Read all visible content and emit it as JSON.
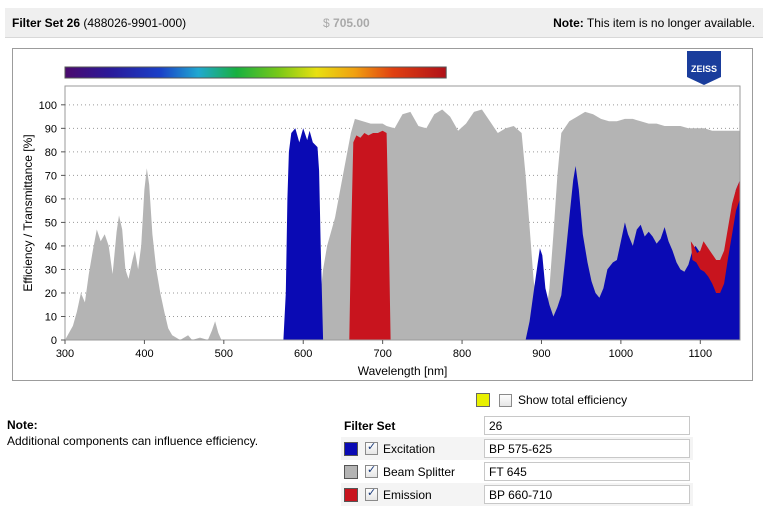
{
  "header": {
    "title": "Filter Set 26",
    "code": "(488026-9901-000)",
    "currency": "$",
    "price": "705.00",
    "note_label": "Note:",
    "note_text": "This item is no longer available."
  },
  "brand": {
    "logo_text": "ZEISS",
    "color": "#1a3d9c"
  },
  "chart_data": {
    "type": "area",
    "xlabel": "Wavelength [nm]",
    "ylabel": "Efficiency / Transmittance [%]",
    "xlim": [
      300,
      1150
    ],
    "ylim": [
      0,
      108
    ],
    "xticks": [
      300,
      400,
      500,
      600,
      700,
      800,
      900,
      1000,
      1100
    ],
    "yticks": [
      0,
      10,
      20,
      30,
      40,
      50,
      60,
      70,
      80,
      90,
      100
    ],
    "grid": "horizontal-dotted",
    "spectrum_bar": {
      "from_nm": 300,
      "to_nm": 780
    },
    "series": [
      {
        "name": "Beam Splitter",
        "color": "#b4b4b4",
        "points": [
          [
            300,
            0
          ],
          [
            305,
            3
          ],
          [
            310,
            6
          ],
          [
            315,
            12
          ],
          [
            320,
            20
          ],
          [
            325,
            16
          ],
          [
            330,
            28
          ],
          [
            335,
            38
          ],
          [
            340,
            47
          ],
          [
            345,
            42
          ],
          [
            350,
            45
          ],
          [
            355,
            40
          ],
          [
            360,
            28
          ],
          [
            365,
            46
          ],
          [
            368,
            53
          ],
          [
            372,
            47
          ],
          [
            376,
            30
          ],
          [
            380,
            26
          ],
          [
            385,
            34
          ],
          [
            388,
            38
          ],
          [
            392,
            30
          ],
          [
            396,
            40
          ],
          [
            400,
            64
          ],
          [
            403,
            73
          ],
          [
            406,
            66
          ],
          [
            410,
            45
          ],
          [
            415,
            30
          ],
          [
            420,
            20
          ],
          [
            425,
            12
          ],
          [
            430,
            5
          ],
          [
            435,
            2
          ],
          [
            440,
            1
          ],
          [
            445,
            0
          ],
          [
            455,
            2
          ],
          [
            460,
            0
          ],
          [
            470,
            1
          ],
          [
            480,
            0
          ],
          [
            485,
            4
          ],
          [
            489,
            8
          ],
          [
            493,
            3
          ],
          [
            497,
            0
          ],
          [
            520,
            0
          ],
          [
            560,
            0
          ],
          [
            600,
            0
          ],
          [
            610,
            4
          ],
          [
            620,
            14
          ],
          [
            625,
            30
          ],
          [
            630,
            40
          ],
          [
            640,
            52
          ],
          [
            650,
            70
          ],
          [
            660,
            88
          ],
          [
            665,
            94
          ],
          [
            675,
            93
          ],
          [
            685,
            92
          ],
          [
            700,
            92
          ],
          [
            705,
            91
          ],
          [
            715,
            90
          ],
          [
            725,
            96
          ],
          [
            735,
            97
          ],
          [
            745,
            91
          ],
          [
            755,
            90
          ],
          [
            765,
            96
          ],
          [
            775,
            98
          ],
          [
            785,
            95
          ],
          [
            795,
            89
          ],
          [
            805,
            92
          ],
          [
            815,
            97
          ],
          [
            825,
            98
          ],
          [
            835,
            93
          ],
          [
            845,
            88
          ],
          [
            855,
            90
          ],
          [
            865,
            91
          ],
          [
            875,
            88
          ],
          [
            880,
            70
          ],
          [
            885,
            48
          ],
          [
            890,
            26
          ],
          [
            895,
            12
          ],
          [
            900,
            5
          ],
          [
            905,
            2
          ],
          [
            910,
            0
          ],
          [
            1150,
            0
          ]
        ],
        "upper_profile": [
          [
            900,
            5
          ],
          [
            905,
            10
          ],
          [
            910,
            22
          ],
          [
            915,
            45
          ],
          [
            920,
            70
          ],
          [
            925,
            88
          ],
          [
            935,
            93
          ],
          [
            945,
            95
          ],
          [
            955,
            97
          ],
          [
            965,
            96
          ],
          [
            975,
            94
          ],
          [
            985,
            93
          ],
          [
            995,
            93
          ],
          [
            1005,
            94
          ],
          [
            1015,
            94
          ],
          [
            1025,
            93
          ],
          [
            1035,
            92
          ],
          [
            1045,
            92
          ],
          [
            1055,
            91
          ],
          [
            1065,
            91
          ],
          [
            1075,
            91
          ],
          [
            1085,
            90
          ],
          [
            1095,
            90
          ],
          [
            1105,
            90
          ],
          [
            1115,
            89
          ],
          [
            1125,
            89
          ],
          [
            1135,
            89
          ],
          [
            1145,
            89
          ],
          [
            1150,
            89
          ]
        ]
      },
      {
        "name": "Excitation",
        "color": "#0a0ab4",
        "points": [
          [
            575,
            0
          ],
          [
            578,
            20
          ],
          [
            580,
            60
          ],
          [
            582,
            80
          ],
          [
            585,
            88
          ],
          [
            590,
            90
          ],
          [
            595,
            84
          ],
          [
            600,
            90
          ],
          [
            605,
            85
          ],
          [
            608,
            89
          ],
          [
            612,
            84
          ],
          [
            618,
            82
          ],
          [
            620,
            72
          ],
          [
            622,
            40
          ],
          [
            625,
            0
          ]
        ]
      },
      {
        "name": "Emission",
        "color": "#c8141e",
        "points": [
          [
            658,
            0
          ],
          [
            660,
            40
          ],
          [
            663,
            84
          ],
          [
            667,
            87
          ],
          [
            672,
            86
          ],
          [
            677,
            88
          ],
          [
            682,
            87
          ],
          [
            688,
            88
          ],
          [
            694,
            88
          ],
          [
            700,
            89
          ],
          [
            705,
            88
          ],
          [
            708,
            40
          ],
          [
            710,
            0
          ]
        ]
      }
    ],
    "excitation_ir": [
      [
        880,
        0
      ],
      [
        885,
        8
      ],
      [
        890,
        20
      ],
      [
        895,
        32
      ],
      [
        898,
        39
      ],
      [
        901,
        36
      ],
      [
        905,
        22
      ],
      [
        910,
        15
      ],
      [
        915,
        10
      ],
      [
        920,
        14
      ],
      [
        925,
        19
      ],
      [
        930,
        35
      ],
      [
        935,
        52
      ],
      [
        940,
        68
      ],
      [
        943,
        74
      ],
      [
        947,
        64
      ],
      [
        952,
        45
      ],
      [
        958,
        33
      ],
      [
        963,
        25
      ],
      [
        968,
        20
      ],
      [
        973,
        18
      ],
      [
        978,
        22
      ],
      [
        983,
        30
      ],
      [
        990,
        33
      ],
      [
        995,
        34
      ],
      [
        1000,
        42
      ],
      [
        1005,
        50
      ],
      [
        1009,
        45
      ],
      [
        1015,
        40
      ],
      [
        1020,
        47
      ],
      [
        1025,
        49
      ],
      [
        1030,
        44
      ],
      [
        1035,
        46
      ],
      [
        1040,
        44
      ],
      [
        1045,
        41
      ],
      [
        1050,
        43
      ],
      [
        1055,
        48
      ],
      [
        1060,
        42
      ],
      [
        1065,
        38
      ],
      [
        1070,
        33
      ],
      [
        1075,
        30
      ],
      [
        1080,
        29
      ],
      [
        1085,
        32
      ],
      [
        1090,
        38
      ],
      [
        1094,
        40
      ],
      [
        1100,
        37
      ],
      [
        1105,
        33
      ],
      [
        1110,
        30
      ],
      [
        1115,
        25
      ],
      [
        1120,
        20
      ],
      [
        1125,
        22
      ],
      [
        1130,
        30
      ],
      [
        1135,
        44
      ],
      [
        1140,
        56
      ],
      [
        1145,
        64
      ],
      [
        1150,
        68
      ],
      [
        1150,
        0
      ]
    ],
    "emission_ir": [
      [
        1088,
        42
      ],
      [
        1092,
        40
      ],
      [
        1096,
        37
      ],
      [
        1100,
        38
      ],
      [
        1104,
        42
      ],
      [
        1108,
        40
      ],
      [
        1112,
        38
      ],
      [
        1116,
        36
      ],
      [
        1120,
        34
      ],
      [
        1125,
        34
      ],
      [
        1130,
        38
      ],
      [
        1135,
        48
      ],
      [
        1140,
        58
      ],
      [
        1145,
        64
      ],
      [
        1150,
        68
      ],
      [
        1150,
        60
      ],
      [
        1145,
        55
      ],
      [
        1140,
        45
      ],
      [
        1135,
        35
      ],
      [
        1130,
        24
      ],
      [
        1125,
        20
      ],
      [
        1120,
        20
      ],
      [
        1115,
        24
      ],
      [
        1110,
        27
      ],
      [
        1105,
        29
      ],
      [
        1100,
        30
      ],
      [
        1095,
        33
      ],
      [
        1090,
        34
      ],
      [
        1088,
        42
      ]
    ]
  },
  "efficiency_toggle": {
    "label": "Show total efficiency",
    "swatch_color": "#e8f000"
  },
  "note": {
    "title": "Note:",
    "text": "Additional components can influence efficiency."
  },
  "filter_set": {
    "header_label": "Filter Set",
    "header_value": "26",
    "rows": [
      {
        "name": "Excitation",
        "value": "BP 575-625",
        "color": "#0a0ab4"
      },
      {
        "name": "Beam Splitter",
        "value": "FT 645",
        "color": "#b4b4b4"
      },
      {
        "name": "Emission",
        "value": "BP 660-710",
        "color": "#c8141e"
      }
    ]
  }
}
